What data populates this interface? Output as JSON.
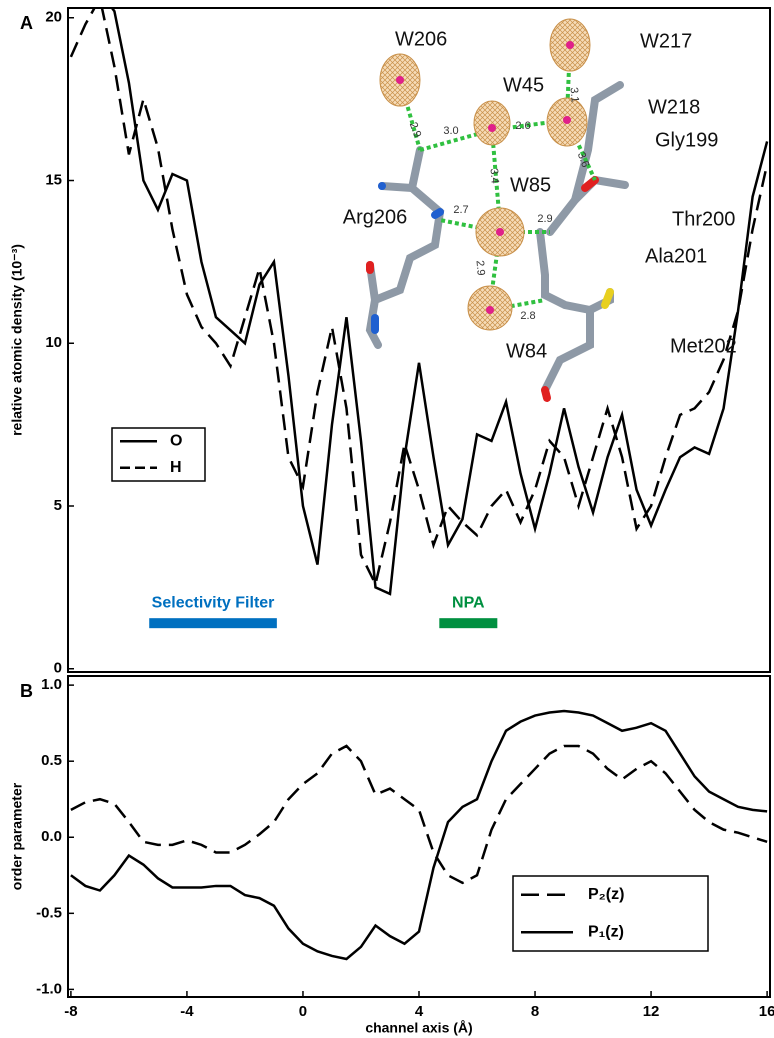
{
  "chart_data": [
    {
      "type": "line",
      "panel": "A",
      "ylabel": "relative atomic density (10⁻³)",
      "x": [
        -8,
        -7.5,
        -7,
        -6.5,
        -6,
        -5.5,
        -5,
        -4.5,
        -4,
        -3.5,
        -3,
        -2.5,
        -2,
        -1.5,
        -1,
        -0.5,
        0,
        0.5,
        1,
        1.5,
        2,
        2.5,
        3,
        3.5,
        4,
        4.5,
        5,
        5.5,
        6,
        6.5,
        7,
        7.5,
        8,
        8.5,
        9,
        9.5,
        10,
        10.5,
        11,
        11.5,
        12,
        12.5,
        13,
        13.5,
        14,
        14.5,
        15,
        15.5,
        16
      ],
      "series": [
        {
          "name": "O",
          "color": "#000000",
          "dash": false,
          "values": [
            21,
            21,
            20.8,
            20.2,
            18,
            15,
            14.1,
            15.2,
            15,
            12.5,
            10.8,
            10.4,
            10,
            11.8,
            12.5,
            9,
            5,
            3.2,
            7.5,
            10.8,
            7,
            2.5,
            2.3,
            6.5,
            9.4,
            6.5,
            3.8,
            4.6,
            7.2,
            7,
            8.2,
            6,
            4.3,
            6,
            8,
            6.2,
            4.8,
            6.5,
            7.8,
            5.5,
            4.4,
            5.5,
            6.5,
            6.8,
            6.6,
            8,
            11,
            14.5,
            16.2
          ]
        },
        {
          "name": "H",
          "color": "#000000",
          "dash": true,
          "values": [
            18.8,
            19.8,
            20.6,
            18.5,
            15.8,
            17.5,
            16,
            13.5,
            11.5,
            10.5,
            10,
            9.3,
            10.8,
            12.3,
            10,
            6.5,
            5.6,
            8.5,
            10.5,
            8,
            3.5,
            2.6,
            4.5,
            6.9,
            5.5,
            3.8,
            5,
            4.5,
            4.1,
            5,
            5.5,
            4.5,
            5.5,
            7,
            6.5,
            5,
            6.5,
            8,
            6.5,
            4.3,
            5,
            6.5,
            7.8,
            8,
            8.5,
            9.5,
            11,
            13.5,
            15.5
          ]
        }
      ],
      "xlim": [
        -8.1,
        16.1
      ],
      "ylim": [
        -0.1,
        20.3
      ],
      "yticks": [
        0,
        5,
        10,
        15,
        20
      ],
      "legend": "center-left",
      "regions": [
        {
          "label": "Selectivity Filter",
          "x": [
            -5.3,
            -0.9
          ],
          "y": 1.4,
          "color": "#0070c0"
        },
        {
          "label": "NPA",
          "x": [
            4.7,
            6.7
          ],
          "y": 1.4,
          "color": "#009040"
        }
      ]
    },
    {
      "type": "line",
      "panel": "B",
      "ylabel": "order parameter",
      "xlabel": "channel axis (Å)",
      "x": [
        -8,
        -7.5,
        -7,
        -6.5,
        -6,
        -5.5,
        -5,
        -4.5,
        -4,
        -3.5,
        -3,
        -2.5,
        -2,
        -1.5,
        -1,
        -0.5,
        0,
        0.5,
        1,
        1.5,
        2,
        2.5,
        3,
        3.5,
        4,
        4.5,
        5,
        5.5,
        6,
        6.5,
        7,
        7.5,
        8,
        8.5,
        9,
        9.5,
        10,
        10.5,
        11,
        11.5,
        12,
        12.5,
        13,
        13.5,
        14,
        14.5,
        15,
        15.5,
        16
      ],
      "series": [
        {
          "name": "P₂(z)",
          "color": "#000000",
          "dash": true,
          "values": [
            0.18,
            0.23,
            0.25,
            0.22,
            0.1,
            -0.03,
            -0.05,
            -0.05,
            -0.02,
            -0.05,
            -0.1,
            -0.1,
            -0.05,
            0.02,
            0.1,
            0.25,
            0.35,
            0.42,
            0.55,
            0.6,
            0.5,
            0.28,
            0.32,
            0.25,
            0.18,
            -0.1,
            -0.25,
            -0.3,
            -0.25,
            0.05,
            0.25,
            0.35,
            0.45,
            0.55,
            0.6,
            0.6,
            0.55,
            0.45,
            0.38,
            0.45,
            0.5,
            0.42,
            0.3,
            0.18,
            0.1,
            0.05,
            0.03,
            0,
            -0.03
          ]
        },
        {
          "name": "P₁(z)",
          "color": "#000000",
          "dash": false,
          "values": [
            -0.25,
            -0.32,
            -0.35,
            -0.25,
            -0.12,
            -0.18,
            -0.27,
            -0.33,
            -0.33,
            -0.33,
            -0.32,
            -0.32,
            -0.38,
            -0.4,
            -0.45,
            -0.6,
            -0.7,
            -0.75,
            -0.78,
            -0.8,
            -0.72,
            -0.58,
            -0.65,
            -0.7,
            -0.62,
            -0.2,
            0.1,
            0.2,
            0.25,
            0.5,
            0.7,
            0.76,
            0.8,
            0.82,
            0.83,
            0.82,
            0.8,
            0.75,
            0.7,
            0.72,
            0.75,
            0.7,
            0.55,
            0.4,
            0.3,
            0.25,
            0.2,
            0.18,
            0.17
          ]
        }
      ],
      "xlim": [
        -8.1,
        16.1
      ],
      "ylim": [
        -1.05,
        1.06
      ],
      "yticks": [
        {
          "value": 1,
          "label": "1.0"
        },
        0.5,
        {
          "value": 0,
          "label": "0.0"
        },
        -0.5,
        {
          "value": -1,
          "label": "-1.0"
        }
      ],
      "xticks": [
        -8,
        -4,
        0,
        4,
        8,
        12,
        16
      ],
      "legend": "lower-right"
    }
  ],
  "inset": {
    "labels": [
      "W206",
      "W217",
      "W45",
      "W218",
      "Gly199",
      "W85",
      "Arg206",
      "Thr200",
      "Ala201",
      "Met202",
      "W84"
    ],
    "distances": [
      "2.9",
      "3.0",
      "2.6",
      "3.1",
      "3.6",
      "3.4",
      "2.7",
      "2.9",
      "2.9",
      "2.8"
    ]
  }
}
